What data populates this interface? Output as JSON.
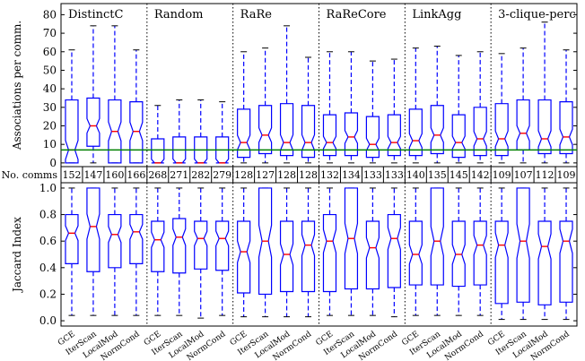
{
  "chart_data": {
    "type": "boxplot",
    "groups": [
      "DistinctC",
      "Random",
      "RaRe",
      "RaReCore",
      "LinkAgg",
      "3-clique-perc"
    ],
    "methods": [
      "GCE",
      "IterScan",
      "LocalMod",
      "NormCond"
    ],
    "top_panel": {
      "ylabel": "Associations per comm.",
      "ylim": [
        -2,
        86
      ],
      "yticks": [
        0,
        10,
        20,
        30,
        40,
        50,
        60,
        70,
        80
      ],
      "reference_line": 7,
      "boxes": [
        {
          "lo": 0,
          "q1": 0,
          "med": 7,
          "q3": 34,
          "hi": 61
        },
        {
          "lo": 0,
          "q1": 9,
          "med": 20,
          "q3": 35,
          "hi": 74
        },
        {
          "lo": 0,
          "q1": 0,
          "med": 17,
          "q3": 34,
          "hi": 74
        },
        {
          "lo": 0,
          "q1": 0,
          "med": 17,
          "q3": 33,
          "hi": 61
        },
        {
          "lo": 0,
          "q1": 0,
          "med": 0,
          "q3": 13,
          "hi": 31
        },
        {
          "lo": 0,
          "q1": 0,
          "med": 0,
          "q3": 14,
          "hi": 34
        },
        {
          "lo": 0,
          "q1": 0,
          "med": 0,
          "q3": 14,
          "hi": 34
        },
        {
          "lo": 0,
          "q1": 0,
          "med": 0,
          "q3": 14,
          "hi": 33
        },
        {
          "lo": 0,
          "q1": 3,
          "med": 11,
          "q3": 29,
          "hi": 60
        },
        {
          "lo": 0,
          "q1": 5,
          "med": 15,
          "q3": 31,
          "hi": 62
        },
        {
          "lo": 0,
          "q1": 4,
          "med": 11,
          "q3": 32,
          "hi": 74
        },
        {
          "lo": 0,
          "q1": 3,
          "med": 11,
          "q3": 31,
          "hi": 57
        },
        {
          "lo": 0,
          "q1": 4,
          "med": 11,
          "q3": 26,
          "hi": 60
        },
        {
          "lo": 0,
          "q1": 4,
          "med": 14,
          "q3": 27,
          "hi": 60
        },
        {
          "lo": 0,
          "q1": 3,
          "med": 10,
          "q3": 25,
          "hi": 55
        },
        {
          "lo": 0,
          "q1": 4,
          "med": 11,
          "q3": 26,
          "hi": 56
        },
        {
          "lo": 0,
          "q1": 4,
          "med": 12,
          "q3": 29,
          "hi": 62
        },
        {
          "lo": 0,
          "q1": 5,
          "med": 15,
          "q3": 31,
          "hi": 63
        },
        {
          "lo": 0,
          "q1": 3,
          "med": 11,
          "q3": 26,
          "hi": 58
        },
        {
          "lo": 0,
          "q1": 4,
          "med": 13,
          "q3": 30,
          "hi": 60
        },
        {
          "lo": 0,
          "q1": 4,
          "med": 13,
          "q3": 32,
          "hi": 59
        },
        {
          "lo": 0,
          "q1": 7,
          "med": 16,
          "q3": 34,
          "hi": 62
        },
        {
          "lo": 0,
          "q1": 5,
          "med": 13,
          "q3": 34,
          "hi": 76
        },
        {
          "lo": 0,
          "q1": 5,
          "med": 14,
          "q3": 33,
          "hi": 61
        }
      ]
    },
    "counts_row": {
      "label": "No. comms",
      "values": [
        152,
        147,
        160,
        166,
        268,
        271,
        282,
        279,
        128,
        127,
        128,
        128,
        132,
        134,
        133,
        133,
        140,
        135,
        145,
        142,
        109,
        107,
        112,
        109
      ]
    },
    "bottom_panel": {
      "ylabel": "Jaccard Index",
      "ylim": [
        -0.04,
        1.04
      ],
      "yticks": [
        0.0,
        0.2,
        0.4,
        0.6,
        0.8,
        1.0
      ],
      "ytick_labels": [
        "0.0",
        "0.2",
        "0.4",
        "0.6",
        "0.8",
        "1.0"
      ],
      "boxes": [
        {
          "lo": 0.04,
          "q1": 0.43,
          "med": 0.66,
          "q3": 0.8,
          "hi": 1.0
        },
        {
          "lo": 0.04,
          "q1": 0.37,
          "med": 0.71,
          "q3": 1.0,
          "hi": 1.0
        },
        {
          "lo": 0.04,
          "q1": 0.4,
          "med": 0.65,
          "q3": 0.8,
          "hi": 1.0
        },
        {
          "lo": 0.04,
          "q1": 0.43,
          "med": 0.67,
          "q3": 0.8,
          "hi": 1.0
        },
        {
          "lo": 0.04,
          "q1": 0.37,
          "med": 0.61,
          "q3": 0.75,
          "hi": 1.0
        },
        {
          "lo": 0.04,
          "q1": 0.36,
          "med": 0.63,
          "q3": 0.77,
          "hi": 1.0
        },
        {
          "lo": 0.02,
          "q1": 0.39,
          "med": 0.62,
          "q3": 0.75,
          "hi": 1.0
        },
        {
          "lo": 0.04,
          "q1": 0.38,
          "med": 0.62,
          "q3": 0.75,
          "hi": 1.0
        },
        {
          "lo": 0.03,
          "q1": 0.21,
          "med": 0.52,
          "q3": 0.75,
          "hi": 1.0
        },
        {
          "lo": 0.03,
          "q1": 0.2,
          "med": 0.6,
          "q3": 1.0,
          "hi": 1.0
        },
        {
          "lo": 0.03,
          "q1": 0.22,
          "med": 0.5,
          "q3": 0.75,
          "hi": 1.0
        },
        {
          "lo": 0.03,
          "q1": 0.22,
          "med": 0.57,
          "q3": 0.75,
          "hi": 1.0
        },
        {
          "lo": 0.04,
          "q1": 0.22,
          "med": 0.6,
          "q3": 0.8,
          "hi": 1.0
        },
        {
          "lo": 0.04,
          "q1": 0.24,
          "med": 0.62,
          "q3": 1.0,
          "hi": 1.0
        },
        {
          "lo": 0.04,
          "q1": 0.24,
          "med": 0.55,
          "q3": 0.75,
          "hi": 1.0
        },
        {
          "lo": 0.03,
          "q1": 0.25,
          "med": 0.62,
          "q3": 0.8,
          "hi": 1.0
        },
        {
          "lo": 0.04,
          "q1": 0.27,
          "med": 0.5,
          "q3": 0.75,
          "hi": 1.0
        },
        {
          "lo": 0.04,
          "q1": 0.27,
          "med": 0.6,
          "q3": 1.0,
          "hi": 1.0
        },
        {
          "lo": 0.04,
          "q1": 0.26,
          "med": 0.5,
          "q3": 0.75,
          "hi": 1.0
        },
        {
          "lo": 0.04,
          "q1": 0.27,
          "med": 0.57,
          "q3": 0.75,
          "hi": 1.0
        },
        {
          "lo": 0.01,
          "q1": 0.13,
          "med": 0.57,
          "q3": 0.75,
          "hi": 1.0
        },
        {
          "lo": 0.01,
          "q1": 0.14,
          "med": 0.6,
          "q3": 1.0,
          "hi": 1.0
        },
        {
          "lo": 0.01,
          "q1": 0.12,
          "med": 0.56,
          "q3": 0.75,
          "hi": 1.0
        },
        {
          "lo": 0.01,
          "q1": 0.14,
          "med": 0.6,
          "q3": 0.75,
          "hi": 1.0
        }
      ]
    },
    "colors": {
      "box": "#0000ff",
      "whisker": "#0000ff",
      "median": "#ff0000",
      "reference_line": "#008000",
      "frame": "#000000"
    }
  }
}
